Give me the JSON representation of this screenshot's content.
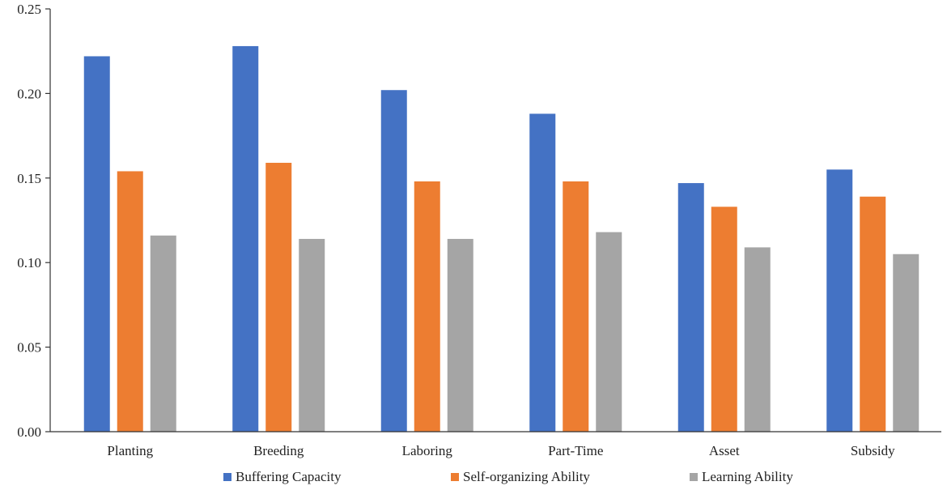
{
  "chart_data": {
    "type": "bar",
    "title": "",
    "xlabel": "",
    "ylabel": "",
    "categories": [
      "Planting",
      "Breeding",
      "Laboring",
      "Part-Time",
      "Asset",
      "Subsidy"
    ],
    "series": [
      {
        "name": "Buffering Capacity",
        "color": "#4472C4",
        "values": [
          0.222,
          0.228,
          0.202,
          0.188,
          0.147,
          0.155
        ]
      },
      {
        "name": "Self-organizing Ability",
        "color": "#ED7D31",
        "values": [
          0.154,
          0.159,
          0.148,
          0.148,
          0.133,
          0.139
        ]
      },
      {
        "name": "Learning Ability",
        "color": "#A5A5A5",
        "values": [
          0.116,
          0.114,
          0.114,
          0.118,
          0.109,
          0.105
        ]
      }
    ],
    "ylim": [
      0,
      0.25
    ],
    "yticks": [
      "0.00",
      "0.05",
      "0.10",
      "0.15",
      "0.20",
      "0.25"
    ],
    "grid": false,
    "legend_position": "bottom"
  }
}
